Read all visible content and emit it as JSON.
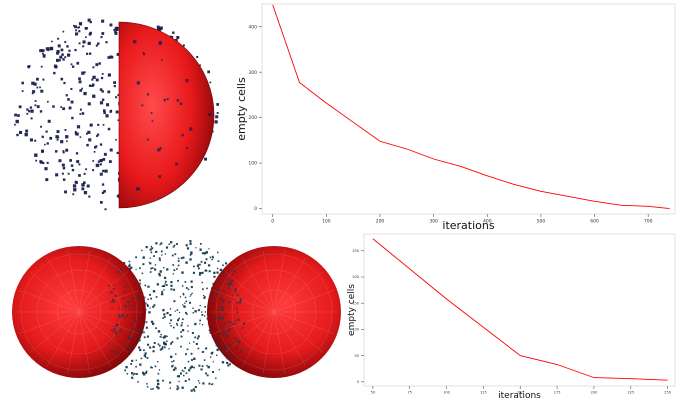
{
  "chart_data": [
    {
      "type": "line",
      "xlabel": "iterations",
      "ylabel": "empty cells",
      "xlim": [
        -20,
        750
      ],
      "ylim": [
        -12,
        450
      ],
      "xticks": [
        0,
        100,
        200,
        300,
        400,
        500,
        600,
        700
      ],
      "yticks": [
        0,
        100,
        200,
        300,
        400
      ],
      "x": [
        0,
        50,
        100,
        150,
        200,
        250,
        300,
        350,
        400,
        450,
        500,
        550,
        600,
        650,
        700,
        740
      ],
      "y": [
        448,
        277,
        232,
        190,
        148,
        131,
        109,
        93,
        72,
        53,
        38,
        27,
        16,
        7,
        5,
        0
      ],
      "line_color": "#ff0000",
      "grid": false
    },
    {
      "type": "line",
      "xlabel": "iterations",
      "ylabel": "empty cells",
      "xlim": [
        44,
        255
      ],
      "ylim": [
        -8,
        282
      ],
      "xticks": [
        50,
        75,
        100,
        125,
        150,
        175,
        200,
        225,
        250
      ],
      "yticks": [
        0,
        50,
        100,
        150,
        200,
        250
      ],
      "x": [
        50,
        100,
        150,
        175,
        200,
        225,
        250
      ],
      "y": [
        273,
        158,
        50,
        33,
        8,
        6,
        3
      ],
      "line_color": "#ff0000",
      "grid": false
    }
  ],
  "colors": {
    "sphere": "#e8191b",
    "sphere_dark": "#8a0507",
    "particles": "#1a1f4e",
    "particles_teal": "#163a4f"
  }
}
